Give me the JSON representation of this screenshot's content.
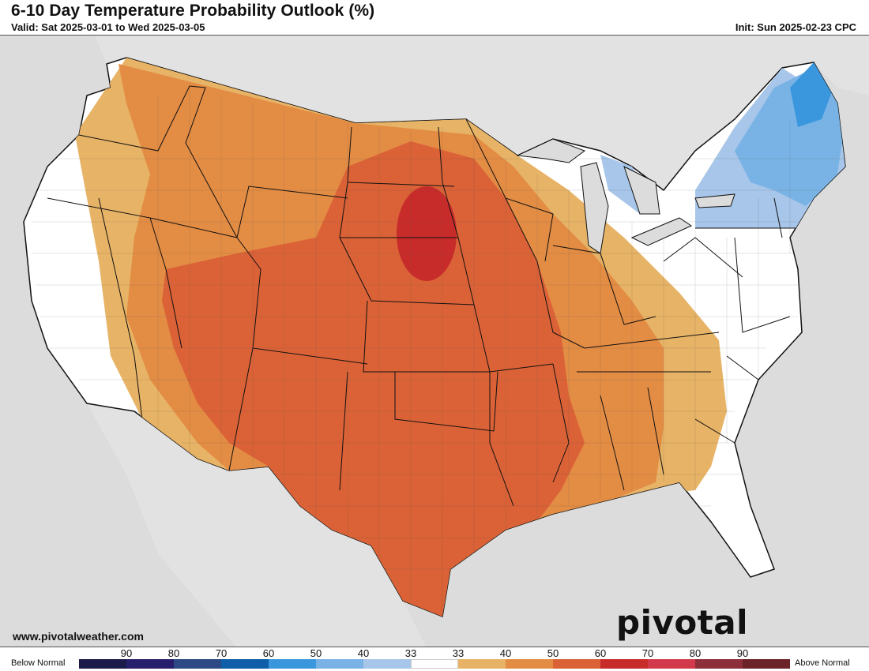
{
  "header": {
    "title": "6-10 Day Temperature Probability Outlook (%)",
    "valid": "Valid: Sat 2025-03-01 to Wed 2025-03-05",
    "init": "Init: Sun 2025-02-23 CPC"
  },
  "footer": {
    "website": "www.pivotalweather.com",
    "brand": "pivotal weather"
  },
  "legend": {
    "left_label": "Below Normal",
    "right_label": "Above Normal",
    "ticks": [
      "90",
      "80",
      "70",
      "60",
      "50",
      "40",
      "33",
      "33",
      "40",
      "50",
      "60",
      "70",
      "80",
      "90"
    ],
    "colors": [
      "#1c1a4b",
      "#271e6c",
      "#2e4a85",
      "#0f5ea8",
      "#3b97dd",
      "#79b3e6",
      "#a7c6e9",
      "#ffffff",
      "#e7b366",
      "#e38c44",
      "#db6237",
      "#c72c2a",
      "#d23a4c",
      "#8d2f3a",
      "#6b2228"
    ]
  },
  "colors": {
    "ocean": "#dcdcdc",
    "land": "#ffffff",
    "above_33_40": "#e7b366",
    "above_40_50": "#e38c44",
    "above_50_60": "#db6237",
    "above_60_70": "#c72c2a",
    "below_33_40": "#a7c6e9",
    "below_40_50": "#79b3e6",
    "below_50_60": "#3b97dd"
  }
}
